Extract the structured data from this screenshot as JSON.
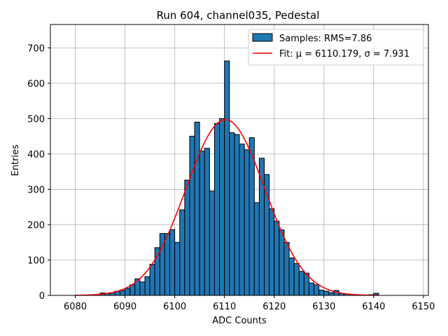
{
  "chart_data": {
    "type": "bar",
    "title": "Run 604, channel035, Pedestal",
    "xlabel": "ADC Counts",
    "ylabel": "Entries",
    "xlim": [
      6075,
      6151
    ],
    "ylim": [
      0,
      766
    ],
    "xticks": [
      6080,
      6090,
      6100,
      6110,
      6120,
      6130,
      6140,
      6150
    ],
    "yticks": [
      0,
      100,
      200,
      300,
      400,
      500,
      600,
      700
    ],
    "grid": true,
    "legend_position": "top-right",
    "bin_width": 1,
    "histogram": {
      "name": "Samples: RMS=7.86",
      "color": "#1f77b4",
      "bins": [
        6080,
        6081,
        6082,
        6083,
        6084,
        6085,
        6086,
        6087,
        6088,
        6089,
        6090,
        6091,
        6092,
        6093,
        6094,
        6095,
        6096,
        6097,
        6098,
        6099,
        6100,
        6101,
        6102,
        6103,
        6104,
        6105,
        6106,
        6107,
        6108,
        6109,
        6110,
        6111,
        6112,
        6113,
        6114,
        6115,
        6116,
        6117,
        6118,
        6119,
        6120,
        6121,
        6122,
        6123,
        6124,
        6125,
        6126,
        6127,
        6128,
        6129,
        6130,
        6131,
        6132,
        6133,
        6134,
        6135,
        6136,
        6137,
        6138,
        6139,
        6140
      ],
      "values": [
        0,
        0,
        0,
        0,
        0,
        7,
        5,
        8,
        12,
        14,
        20,
        30,
        47,
        38,
        53,
        88,
        135,
        175,
        175,
        186,
        150,
        242,
        326,
        450,
        490,
        408,
        416,
        295,
        486,
        500,
        663,
        460,
        455,
        428,
        412,
        446,
        262,
        388,
        342,
        245,
        210,
        185,
        150,
        106,
        90,
        68,
        63,
        35,
        30,
        15,
        12,
        8,
        14,
        6,
        4,
        3,
        2,
        1,
        1,
        2,
        6
      ]
    },
    "fit": {
      "name": "Fit: μ = 6110.179, σ = 7.931",
      "color": "#ff0000",
      "mu": 6110.179,
      "sigma": 7.931,
      "amplitude": 497,
      "x_range": [
        6080,
        6141
      ]
    }
  }
}
